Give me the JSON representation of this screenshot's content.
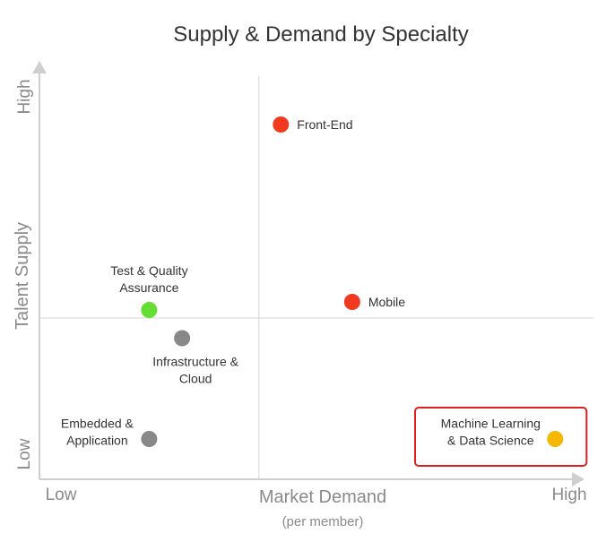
{
  "chart_data": {
    "type": "scatter",
    "title": "Supply & Demand by Specialty",
    "xlabel": "Market Demand",
    "xlabel_sub": "(per member)",
    "ylabel": "Talent Supply",
    "x_low_label": "Low",
    "x_high_label": "High",
    "y_low_label": "Low",
    "y_high_label": "High",
    "xlim": [
      0,
      10
    ],
    "ylim": [
      0,
      10
    ],
    "quadrant_divider": {
      "x": 4.0,
      "y": 4.0
    },
    "grid": false,
    "points": [
      {
        "label_lines": [
          "Front-End"
        ],
        "x": 4.4,
        "y": 8.8,
        "color": "#f0391f",
        "label_side": "right"
      },
      {
        "label_lines": [
          "Mobile"
        ],
        "x": 5.7,
        "y": 4.4,
        "color": "#f0391f",
        "label_side": "right"
      },
      {
        "label_lines": [
          "Test & Quality",
          "Assurance"
        ],
        "x": 2.0,
        "y": 4.2,
        "color": "#66dd33",
        "label_side": "above"
      },
      {
        "label_lines": [
          "Infrastructure &",
          "Cloud"
        ],
        "x": 2.6,
        "y": 3.5,
        "color": "#888888",
        "label_side": "below"
      },
      {
        "label_lines": [
          "Embedded &",
          "Application"
        ],
        "x": 2.0,
        "y": 1.0,
        "color": "#888888",
        "label_side": "left"
      },
      {
        "label_lines": [
          "Machine Learning",
          "& Data Science"
        ],
        "x": 9.4,
        "y": 1.0,
        "color": "#f5b800",
        "label_side": "left",
        "highlighted": true
      }
    ],
    "highlight_color": "#e02020"
  }
}
